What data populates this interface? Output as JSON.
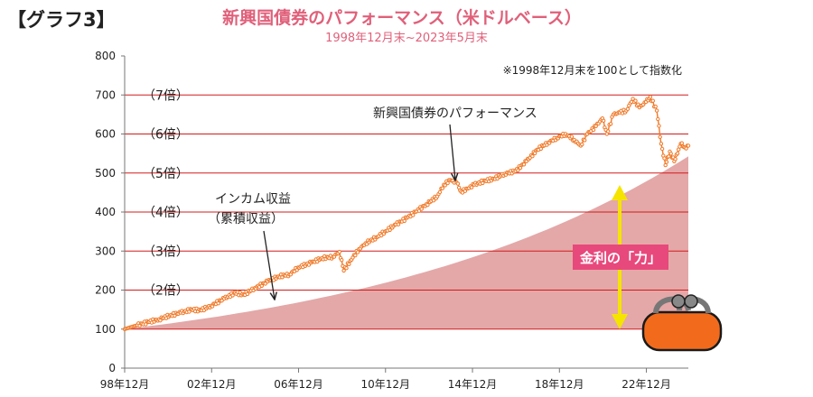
{
  "header": {
    "graph_label": "【グラフ3】",
    "title": "新興国債券のパフォーマンス（米ドルベース）",
    "subtitle": "1998年12月末~2023年5月末"
  },
  "colors": {
    "title": "#e0607a",
    "bond_line": "#f07a2a",
    "income_area": "#e4a8a8",
    "gridline": "#d21c1c",
    "arrow": "#f5e400",
    "badge_bg": "#e8497c",
    "purse": "#f26b1d"
  },
  "chart_data": {
    "type": "line",
    "note": "※1998年12月末を100として指数化",
    "ylim": [
      0,
      800
    ],
    "y_ticks": [
      "0",
      "100",
      "200",
      "300",
      "400",
      "500",
      "600",
      "700",
      "800"
    ],
    "x_ticks": [
      "98年12月",
      "02年12月",
      "06年12月",
      "10年12月",
      "14年12月",
      "18年12月",
      "22年12月"
    ],
    "multiple_labels": [
      {
        "label": "（2倍）",
        "y": 200
      },
      {
        "label": "（3倍）",
        "y": 300
      },
      {
        "label": "（4倍）",
        "y": 400
      },
      {
        "label": "（5倍）",
        "y": 500
      },
      {
        "label": "（6倍）",
        "y": 600
      },
      {
        "label": "（7倍）",
        "y": 700
      }
    ],
    "annotations": {
      "bond": "新興国債券のパフォーマンス",
      "income_line1": "インカム収益",
      "income_line2": "（累積収益）",
      "power": "金利の「力」"
    },
    "series": [
      {
        "name": "新興国債券のパフォーマンス",
        "points": [
          [
            1998.92,
            100
          ],
          [
            1999.5,
            110
          ],
          [
            2000.0,
            118
          ],
          [
            2000.5,
            125
          ],
          [
            2001.0,
            135
          ],
          [
            2001.5,
            142
          ],
          [
            2002.0,
            150
          ],
          [
            2002.4,
            148
          ],
          [
            2002.9,
            160
          ],
          [
            2003.5,
            178
          ],
          [
            2004.0,
            193
          ],
          [
            2004.4,
            188
          ],
          [
            2004.9,
            205
          ],
          [
            2005.5,
            222
          ],
          [
            2006.0,
            235
          ],
          [
            2006.5,
            240
          ],
          [
            2006.9,
            258
          ],
          [
            2007.5,
            270
          ],
          [
            2008.0,
            282
          ],
          [
            2008.5,
            285
          ],
          [
            2008.8,
            298
          ],
          [
            2009.0,
            250
          ],
          [
            2009.3,
            275
          ],
          [
            2009.7,
            305
          ],
          [
            2010.0,
            320
          ],
          [
            2010.5,
            335
          ],
          [
            2010.9,
            350
          ],
          [
            2011.4,
            368
          ],
          [
            2011.9,
            385
          ],
          [
            2012.3,
            400
          ],
          [
            2012.8,
            420
          ],
          [
            2013.3,
            440
          ],
          [
            2013.6,
            470
          ],
          [
            2013.9,
            482
          ],
          [
            2014.2,
            475
          ],
          [
            2014.4,
            452
          ],
          [
            2014.7,
            460
          ],
          [
            2015.0,
            470
          ],
          [
            2015.5,
            480
          ],
          [
            2015.9,
            485
          ],
          [
            2016.4,
            498
          ],
          [
            2016.9,
            505
          ],
          [
            2017.4,
            530
          ],
          [
            2017.9,
            560
          ],
          [
            2018.4,
            578
          ],
          [
            2018.8,
            590
          ],
          [
            2019.2,
            600
          ],
          [
            2019.6,
            585
          ],
          [
            2019.9,
            570
          ],
          [
            2020.2,
            600
          ],
          [
            2020.6,
            620
          ],
          [
            2020.9,
            640
          ],
          [
            2021.1,
            600
          ],
          [
            2021.4,
            650
          ],
          [
            2021.7,
            655
          ],
          [
            2022.0,
            660
          ],
          [
            2022.3,
            690
          ],
          [
            2022.6,
            668
          ],
          [
            2022.9,
            682
          ],
          [
            2023.1,
            695
          ],
          [
            2023.4,
            660
          ],
          [
            2023.6,
            575
          ],
          [
            2023.8,
            520
          ],
          [
            2024.0,
            555
          ],
          [
            2024.2,
            530
          ],
          [
            2024.35,
            550
          ],
          [
            2024.5,
            575
          ],
          [
            2024.7,
            565
          ],
          [
            2024.85,
            570
          ]
        ]
      },
      {
        "name": "インカム収益（累積収益）",
        "start": [
          1998.92,
          100
        ],
        "end": [
          2024.85,
          543
        ]
      }
    ]
  }
}
